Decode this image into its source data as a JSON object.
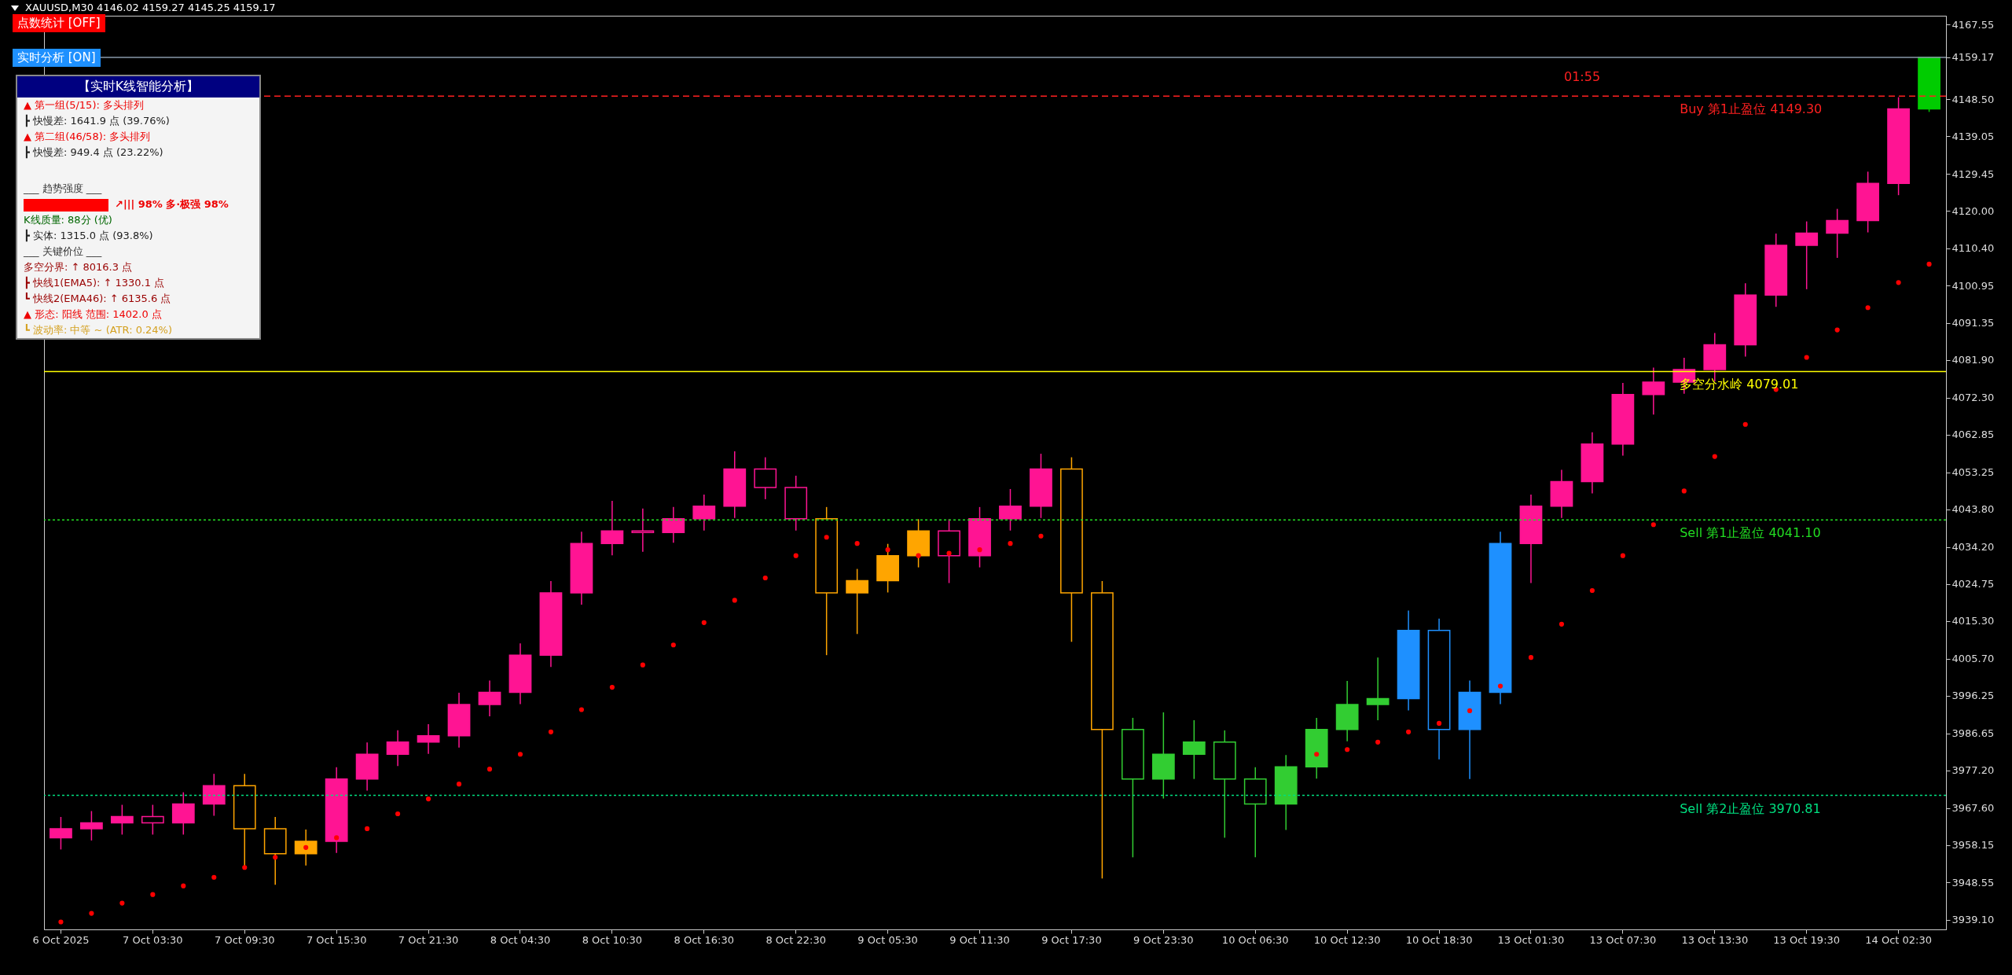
{
  "chart_data": {
    "type": "candlestick",
    "title": "XAUUSD,M30  4146.02 4159.27 4145.25 4159.17",
    "categories": [
      "6 Oct 2025",
      null,
      null,
      "7 Oct 03:30",
      null,
      null,
      "7 Oct 09:30",
      null,
      null,
      "7 Oct 15:30",
      null,
      null,
      "7 Oct 21:30",
      null,
      null,
      "8 Oct 04:30",
      null,
      null,
      "8 Oct 10:30",
      null,
      null,
      "8 Oct 16:30",
      null,
      null,
      "8 Oct 22:30",
      null,
      null,
      "9 Oct 05:30",
      null,
      null,
      "9 Oct 11:30",
      null,
      null,
      "9 Oct 17:30",
      null,
      null,
      "9 Oct 23:30",
      null,
      null,
      "10 Oct 06:30",
      null,
      null,
      "10 Oct 12:30",
      null,
      null,
      "10 Oct 18:30",
      null,
      null,
      "13 Oct 01:30",
      null,
      null,
      "13 Oct 07:30",
      null,
      null,
      "13 Oct 13:30",
      null,
      null,
      "13 Oct 19:30",
      null,
      null,
      "14 Oct 02:30",
      null
    ],
    "ohlc": [
      [
        3960.0,
        3965.3,
        3957.0,
        3962.3
      ],
      [
        3962.3,
        3966.8,
        3959.3,
        3963.8
      ],
      [
        3963.8,
        3968.4,
        3960.8,
        3965.4
      ],
      [
        3965.4,
        3968.4,
        3960.8,
        3963.8
      ],
      [
        3963.8,
        3971.6,
        3960.8,
        3968.6
      ],
      [
        3968.6,
        3976.3,
        3965.6,
        3973.3
      ],
      [
        3973.3,
        3976.3,
        3952.8,
        3962.3
      ],
      [
        3962.3,
        3965.3,
        3948.0,
        3955.9
      ],
      [
        3955.9,
        3962.1,
        3952.9,
        3959.1
      ],
      [
        3959.1,
        3978.0,
        3956.1,
        3975.0
      ],
      [
        3975.0,
        3984.3,
        3972.0,
        3981.3
      ],
      [
        3981.3,
        3987.4,
        3978.3,
        3984.4
      ],
      [
        3984.4,
        3989.0,
        3981.4,
        3986.0
      ],
      [
        3986.0,
        3997.0,
        3983.0,
        3994.0
      ],
      [
        3994.0,
        4000.1,
        3991.0,
        3997.1
      ],
      [
        3997.1,
        4009.6,
        3994.1,
        4006.6
      ],
      [
        4006.6,
        4025.5,
        4003.6,
        4022.5
      ],
      [
        4022.5,
        4038.1,
        4019.5,
        4035.1
      ],
      [
        4035.1,
        4046.0,
        4032.1,
        4038.3
      ],
      [
        4038.3,
        4044.0,
        4033.0,
        4037.9
      ],
      [
        4037.9,
        4044.4,
        4035.3,
        4041.4
      ],
      [
        4041.4,
        4047.6,
        4038.4,
        4044.6
      ],
      [
        4044.6,
        4058.6,
        4041.6,
        4054.1
      ],
      [
        4054.1,
        4057.1,
        4046.4,
        4049.4
      ],
      [
        4049.4,
        4052.4,
        4038.4,
        4041.4
      ],
      [
        4041.4,
        4044.4,
        4006.6,
        4022.5
      ],
      [
        4022.5,
        4028.6,
        4012.0,
        4025.6
      ],
      [
        4025.6,
        4035.0,
        4022.6,
        4032.0
      ],
      [
        4032.0,
        4041.3,
        4029.0,
        4038.3
      ],
      [
        4038.3,
        4041.3,
        4025.0,
        4032.0
      ],
      [
        4032.0,
        4044.4,
        4029.0,
        4041.4
      ],
      [
        4041.4,
        4049.0,
        4038.4,
        4044.6
      ],
      [
        4044.6,
        4058.0,
        4041.6,
        4054.1
      ],
      [
        4054.1,
        4057.1,
        4010.0,
        4022.5
      ],
      [
        4022.5,
        4025.5,
        3949.6,
        3987.6
      ],
      [
        3987.6,
        3990.6,
        3955.0,
        3975.0
      ],
      [
        3975.0,
        3992.0,
        3970.0,
        3981.3
      ],
      [
        3981.3,
        3990.0,
        3975.0,
        3984.4
      ],
      [
        3984.4,
        3987.4,
        3960.0,
        3975.0
      ],
      [
        3975.0,
        3978.0,
        3955.0,
        3968.6
      ],
      [
        3968.6,
        3981.1,
        3962.0,
        3978.1
      ],
      [
        3978.1,
        3990.6,
        3975.1,
        3987.6
      ],
      [
        3987.6,
        4000.0,
        3984.6,
        3994.0
      ],
      [
        3994.0,
        4006.0,
        3990.0,
        3995.5
      ],
      [
        3995.5,
        4018.0,
        3992.5,
        4012.9
      ],
      [
        4012.9,
        4015.9,
        3980.0,
        3987.6
      ],
      [
        3987.6,
        4000.1,
        3975.0,
        3997.1
      ],
      [
        3997.1,
        4038.1,
        3994.1,
        4035.1
      ],
      [
        4035.1,
        4047.6,
        4025.0,
        4044.6
      ],
      [
        4044.6,
        4053.9,
        4041.6,
        4050.9
      ],
      [
        4050.9,
        4063.5,
        4047.9,
        4060.5
      ],
      [
        4060.5,
        4076.1,
        4057.5,
        4073.1
      ],
      [
        4073.1,
        4080.0,
        4068.0,
        4076.3
      ],
      [
        4076.3,
        4082.5,
        4073.3,
        4079.5
      ],
      [
        4079.5,
        4088.8,
        4076.5,
        4085.8
      ],
      [
        4085.8,
        4101.5,
        4082.8,
        4098.5
      ],
      [
        4098.5,
        4114.2,
        4095.5,
        4111.2
      ],
      [
        4111.2,
        4117.3,
        4100.0,
        4114.3
      ],
      [
        4114.3,
        4120.5,
        4108.0,
        4117.5
      ],
      [
        4117.5,
        4130.0,
        4114.5,
        4127.0
      ],
      [
        4127.0,
        4149.0,
        4124.0,
        4146.0
      ],
      [
        4146.02,
        4159.27,
        4145.25,
        4159.17
      ]
    ],
    "colors": [
      "#ff1493",
      "#ff1493",
      "#ff1493",
      "#ff1493",
      "#ff1493",
      "#ff1493",
      "#ffa500",
      "#ffa500",
      "#ffa500",
      "#ff1493",
      "#ff1493",
      "#ff1493",
      "#ff1493",
      "#ff1493",
      "#ff1493",
      "#ff1493",
      "#ff1493",
      "#ff1493",
      "#ff1493",
      "#ff1493",
      "#ff1493",
      "#ff1493",
      "#ff1493",
      "#ff1493",
      "#ff1493",
      "#ffa500",
      "#ffa500",
      "#ffa500",
      "#ffa500",
      "#ff1493",
      "#ff1493",
      "#ff1493",
      "#ff1493",
      "#ffa500",
      "#ffa500",
      "#32cd32",
      "#32cd32",
      "#32cd32",
      "#32cd32",
      "#32cd32",
      "#32cd32",
      "#32cd32",
      "#32cd32",
      "#32cd32",
      "#1e90ff",
      "#1e90ff",
      "#1e90ff",
      "#1e90ff",
      "#ff1493",
      "#ff1493",
      "#ff1493",
      "#ff1493",
      "#ff1493",
      "#ff1493",
      "#ff1493",
      "#ff1493",
      "#ff1493",
      "#ff1493",
      "#ff1493",
      "#ff1493",
      "#ff1493",
      "#00cc00"
    ],
    "series": [
      {
        "type": "scatter",
        "color": "#ff0000",
        "values": [
          3938.5,
          3940.7,
          3943.3,
          3945.5,
          3947.7,
          3949.9,
          3952.4,
          3955.0,
          3957.5,
          3960.0,
          3962.3,
          3966.1,
          3969.9,
          3973.7,
          3977.5,
          3981.3,
          3987.0,
          3992.7,
          3998.4,
          4004.1,
          4009.2,
          4014.9,
          4020.6,
          4026.3,
          4032.0,
          4036.7,
          4035.1,
          4033.5,
          4032.0,
          4032.6,
          4033.5,
          4035.1,
          4037.0,
          null,
          null,
          null,
          null,
          null,
          null,
          null,
          null,
          3981.3,
          3982.5,
          3984.4,
          3987.0,
          3989.2,
          3992.4,
          3998.7,
          4006.0,
          4014.5,
          4023.1,
          4032.0,
          4039.9,
          4048.5,
          4057.3,
          4065.5,
          4074.4,
          4082.6,
          4089.6,
          4095.3,
          4101.7,
          4106.4
        ]
      }
    ],
    "ylim": [
      3936.6,
      4169.8
    ],
    "yticks": [
      4167.55,
      {
        "value": 4159.17,
        "label": "4159.17"
      },
      {
        "value": 4148.5,
        "label": "4148.50"
      },
      4139.05,
      4129.45,
      {
        "value": 4120,
        "label": "4120.00"
      },
      {
        "value": 4110.4,
        "label": "4110.40"
      },
      4100.95,
      4091.35,
      {
        "value": 4081.9,
        "label": "4081.90"
      },
      {
        "value": 4072.3,
        "label": "4072.30"
      },
      4062.85,
      4053.25,
      {
        "value": 4043.8,
        "label": "4043.80"
      },
      {
        "value": 4034.2,
        "label": "4034.20"
      },
      4024.75,
      {
        "value": 4015.3,
        "label": "4015.30"
      },
      {
        "value": 4005.7,
        "label": "4005.70"
      },
      3996.25,
      3986.65,
      {
        "value": 3977.2,
        "label": "3977.20"
      },
      {
        "value": 3967.6,
        "label": "3967.60"
      },
      3958.15,
      3948.55,
      {
        "value": 3939.1,
        "label": "3939.10"
      }
    ],
    "ref_lines": [
      {
        "axis": "y",
        "value": 4159.17,
        "color": "#8899aa",
        "line_style": "solid"
      },
      {
        "axis": "y",
        "value": 4149.3,
        "label": "Buy 第1止盈位 4149.30",
        "color": "#ff2020",
        "line_style": "dashed"
      },
      {
        "axis": "y",
        "value": 4079.01,
        "label": "多空分水岭 4079.01",
        "color": "#ffff00",
        "line_style": "solid"
      },
      {
        "axis": "y",
        "value": 4041.1,
        "label": "Sell 第1止盈位 4041.10",
        "color": "#22dd22",
        "line_style": "dotted"
      },
      {
        "axis": "y",
        "value": 3970.81,
        "label": "Sell 第2止盈位 3970.81",
        "color": "#00e080",
        "line_style": "dotted"
      }
    ],
    "annotations": [
      "点数统计 [OFF]",
      "实时分析 [ON]",
      "【实时K线智能分析】",
      "▲ 第一组(5/15): 多头排列",
      "┣ 快慢差: 1641.9 点 (39.76%)",
      "▲ 第二组(46/58): 多头排列",
      "┣ 快慢差: 949.4 点 (23.22%)",
      "___ 趋势强度 ___",
      "↗||| 98% 多·极强 98%",
      "K线质量: 88分 (优)",
      "┣ 实体: 1315.0 点 (93.8%)",
      "___ 关键价位 ___",
      "多空分界: ↑ 8016.3 点",
      "┣ 快线1(EMA5): ↑ 1330.1 点",
      "┗ 快线2(EMA46): ↑ 6135.6 点",
      "▲ 形态: 阳线  范围: 1402.0 点",
      "┗ 波动率: 中等 ~ (ATR: 0.24%)",
      "01:55"
    ],
    "grid": false
  }
}
